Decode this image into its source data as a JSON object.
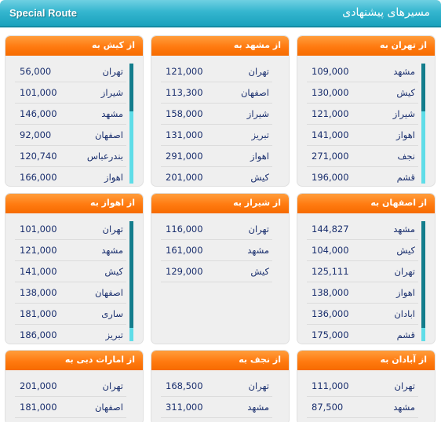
{
  "header": {
    "left_title": "Special Route",
    "right_title": "مسیرهای پیشنهادی",
    "colors": {
      "bar": "#26aac4",
      "card_title": "#ff7a10",
      "scroll_track": "#5fdde8",
      "scroll_thumb": "#137d8c",
      "text": "#1a2f6e"
    }
  },
  "cards": [
    {
      "title": "از تهران به",
      "rows": [
        {
          "city": "مشهد",
          "price": "109,000"
        },
        {
          "city": "کیش",
          "price": "130,000"
        },
        {
          "city": "شیراز",
          "price": "121,000"
        },
        {
          "city": "اهواز",
          "price": "141,000"
        },
        {
          "city": "نجف",
          "price": "271,000"
        },
        {
          "city": "قشم",
          "price": "196,000"
        }
      ]
    },
    {
      "title": "از مشهد به",
      "rows": [
        {
          "city": "تهران",
          "price": "121,000"
        },
        {
          "city": "اصفهان",
          "price": "113,300"
        },
        {
          "city": "شیراز",
          "price": "158,000"
        },
        {
          "city": "تبریز",
          "price": "131,000"
        },
        {
          "city": "اهواز",
          "price": "291,000"
        },
        {
          "city": "کیش",
          "price": "201,000"
        }
      ]
    },
    {
      "title": "از کیش به",
      "rows": [
        {
          "city": "تهران",
          "price": "56,000"
        },
        {
          "city": "شیراز",
          "price": "101,000"
        },
        {
          "city": "مشهد",
          "price": "146,000"
        },
        {
          "city": "اصفهان",
          "price": "92,000"
        },
        {
          "city": "بندرعباس",
          "price": "120,740"
        },
        {
          "city": "اهواز",
          "price": "166,000"
        }
      ]
    },
    {
      "title": "از اصفهان به",
      "rows": [
        {
          "city": "مشهد",
          "price": "144,827"
        },
        {
          "city": "کیش",
          "price": "104,000"
        },
        {
          "city": "تهران",
          "price": "125,111"
        },
        {
          "city": "اهواز",
          "price": "138,000"
        },
        {
          "city": "ابادان",
          "price": "136,000"
        },
        {
          "city": "قشم",
          "price": "175,000"
        }
      ]
    },
    {
      "title": "از شیراز به",
      "rows": [
        {
          "city": "تهران",
          "price": "116,000"
        },
        {
          "city": "مشهد",
          "price": "161,000"
        },
        {
          "city": "کیش",
          "price": "129,000"
        }
      ]
    },
    {
      "title": "از اهواز به",
      "rows": [
        {
          "city": "تهران",
          "price": "101,000"
        },
        {
          "city": "مشهد",
          "price": "121,000"
        },
        {
          "city": "کیش",
          "price": "141,000"
        },
        {
          "city": "اصفهان",
          "price": "138,000"
        },
        {
          "city": "ساری",
          "price": "181,000"
        },
        {
          "city": "تبریز",
          "price": "186,000"
        }
      ]
    },
    {
      "title": "از آبادان به",
      "rows": [
        {
          "city": "تهران",
          "price": "111,000"
        },
        {
          "city": "مشهد",
          "price": "87,500"
        }
      ]
    },
    {
      "title": "از نجف به",
      "rows": [
        {
          "city": "تهران",
          "price": "168,500"
        },
        {
          "city": "مشهد",
          "price": "311,000"
        }
      ]
    },
    {
      "title": "از امارات دبی به",
      "rows": [
        {
          "city": "تهران",
          "price": "201,000"
        },
        {
          "city": "اصفهان",
          "price": "181,000"
        }
      ]
    }
  ]
}
